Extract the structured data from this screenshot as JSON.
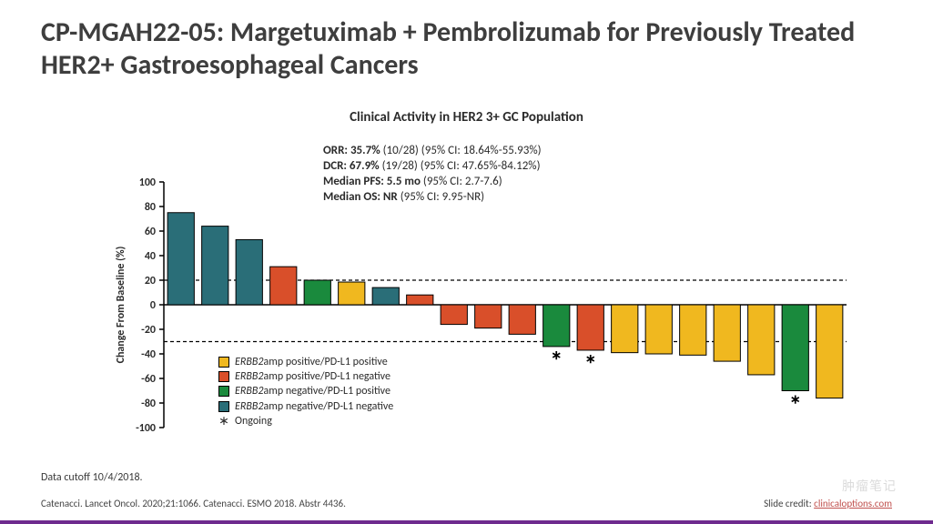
{
  "title": "CP-MGAH22-05: Margetuximab + Pembrolizumab for Previously Treated HER2+ Gastroesophageal Cancers",
  "subtitle": "Clinical Activity in HER2 3+ GC Population",
  "stats": {
    "orr": {
      "label": "ORR: 35.7%",
      "rest": " (10/28) (95% CI: 18.64%-55.93%)"
    },
    "dcr": {
      "label": "DCR: 67.9%",
      "rest": " (19/28) (95% CI: 47.65%-84.12%)"
    },
    "pfs": {
      "label": "Median PFS: 5.5 mo",
      "rest": " (95% CI: 2.7-7.6)"
    },
    "os": {
      "label": "Median OS: NR",
      "rest": " (95% CI: 9.95-NR)"
    }
  },
  "chart": {
    "type": "bar",
    "ylabel": "Change From Baseline (%)",
    "ylim": [
      -100,
      100
    ],
    "ytick_step": 20,
    "ref_lines": [
      20,
      -30
    ],
    "ref_dash": "4,3",
    "axis_color": "#000000",
    "grid_color": "#000000",
    "bar_border": "#000000",
    "bar_width_ratio": 0.78,
    "plot_bg": "#ffffff",
    "bars": [
      {
        "v": 75,
        "cat": "nn",
        "star": false
      },
      {
        "v": 64,
        "cat": "nn",
        "star": false
      },
      {
        "v": 53,
        "cat": "nn",
        "star": false
      },
      {
        "v": 31,
        "cat": "pn",
        "star": false
      },
      {
        "v": 20,
        "cat": "np",
        "star": false
      },
      {
        "v": 18.5,
        "cat": "pp",
        "star": false
      },
      {
        "v": 14,
        "cat": "nn",
        "star": false
      },
      {
        "v": 8,
        "cat": "pn",
        "star": false
      },
      {
        "v": -16,
        "cat": "pn",
        "star": false
      },
      {
        "v": -19,
        "cat": "pn",
        "star": false
      },
      {
        "v": -24,
        "cat": "pn",
        "star": false
      },
      {
        "v": -34,
        "cat": "np",
        "star": true
      },
      {
        "v": -37,
        "cat": "pn",
        "star": true
      },
      {
        "v": -39,
        "cat": "pp",
        "star": false
      },
      {
        "v": -40,
        "cat": "pp",
        "star": false
      },
      {
        "v": -41,
        "cat": "pp",
        "star": false
      },
      {
        "v": -46,
        "cat": "pp",
        "star": false
      },
      {
        "v": -57,
        "cat": "pp",
        "star": false
      },
      {
        "v": -70,
        "cat": "np",
        "star": true
      },
      {
        "v": -76,
        "cat": "pp",
        "star": false
      }
    ],
    "colors": {
      "pp": "#f0b81f",
      "pn": "#d94f2a",
      "np": "#1a8a3d",
      "nn": "#2a6e78"
    }
  },
  "legend": {
    "pp": "amp positive/PD-L1 positive",
    "pn": "amp positive/PD-L1 negative",
    "np": "amp negative/PD-L1 positive",
    "nn": "amp negative/PD-L1 negative",
    "gene": "ERBB2",
    "ongoing": "Ongoing"
  },
  "footnote": "Data cutoff 10/4/2018.",
  "refs": "Catenacci. Lancet Oncol. 2020;21:1066. Catenacci. ESMO 2018. Abstr 4436.",
  "credit_prefix": "Slide credit: ",
  "credit_link": "clinicaloptions.com",
  "watermark": "肿瘤笔记"
}
